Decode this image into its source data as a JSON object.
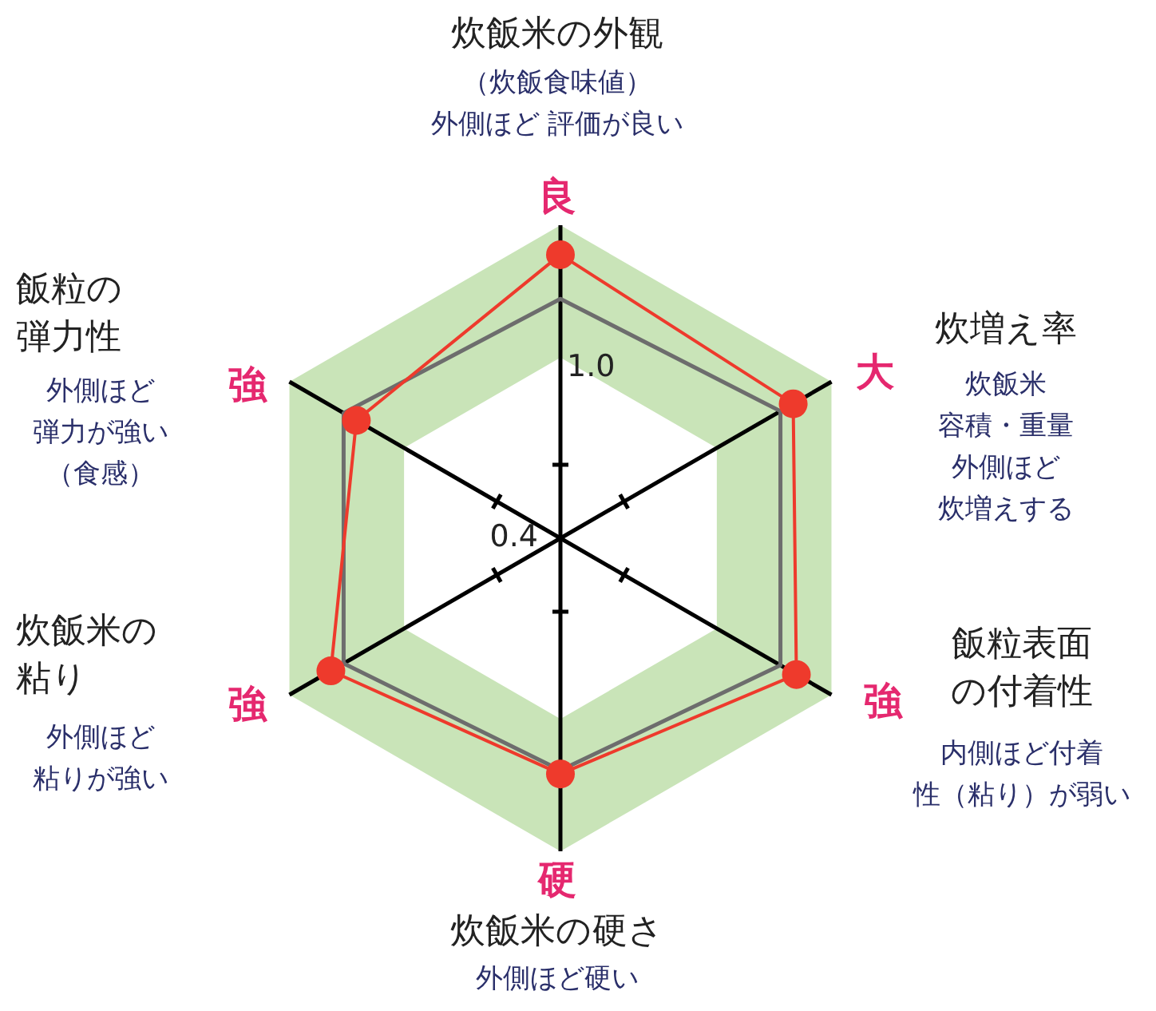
{
  "chart_data": {
    "type": "radar",
    "categories": [
      "炊飯米の外観",
      "炊増え率",
      "飯粒表面の付着性",
      "炊飯米の硬さ",
      "炊飯米の粘り",
      "飯粒の弾力性"
    ],
    "series": [
      {
        "color": "#6d6d6d",
        "marker": "none",
        "values": [
          1.05,
          1.09,
          1.09,
          1.03,
          1.08,
          1.08
        ]
      },
      {
        "color": "#ee3a2c",
        "marker": "circle",
        "values": [
          1.17,
          1.13,
          1.14,
          1.04,
          1.12,
          1.04
        ]
      }
    ],
    "ylim": [
      0.4,
      1.25
    ],
    "yticks": [
      0.4,
      {
        "value": 1.0,
        "label": "1.0"
      }
    ],
    "annotations": [
      "（炊飯食味値）外側ほど 評価が良い",
      "炊飯米容積・重量外側ほど炊増えする",
      "内側ほど付着性（粘り）が弱い",
      "外側ほど硬い",
      "外側ほど粘りが強い",
      "外側ほど弾力が強い（食感）",
      "良",
      "大",
      "強",
      "硬",
      "強",
      "強"
    ]
  }
}
